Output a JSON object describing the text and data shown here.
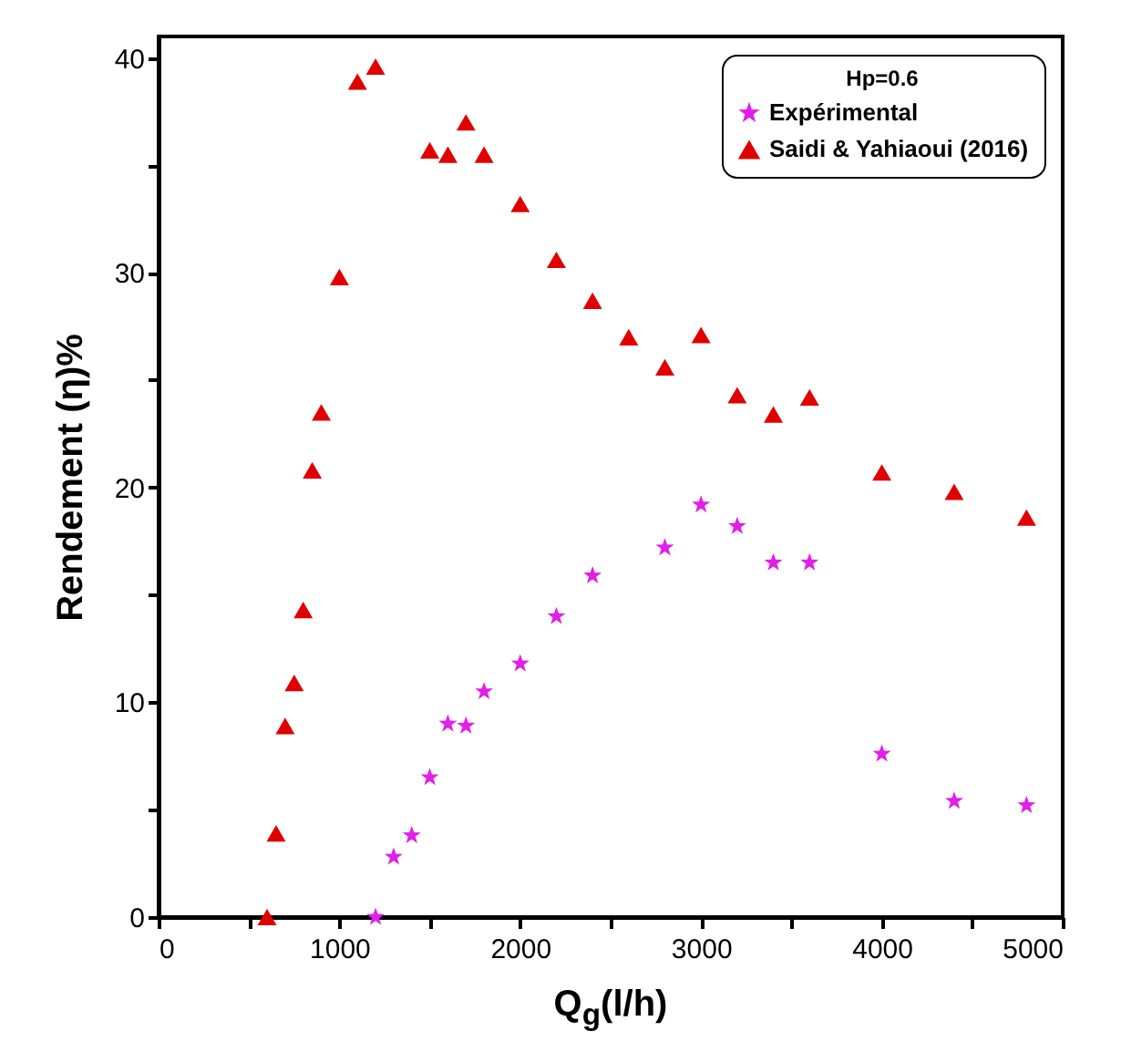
{
  "chart_data": {
    "type": "scatter",
    "xlabel": "Q$_{g}$(l/h)",
    "ylabel": "Rendement (η)%",
    "legend_title": "Hp=0.6",
    "legend": "top right",
    "grid": false,
    "xlim": [
      0,
      5000
    ],
    "xticks": [
      0,
      {
        "value": 500,
        "label": null
      },
      1000,
      {
        "value": 1500,
        "label": null
      },
      2000,
      {
        "value": 2500,
        "label": null
      },
      3000,
      {
        "value": 3500,
        "label": null
      },
      4000,
      {
        "value": 4500,
        "label": null
      },
      5000
    ],
    "ylim": [
      0,
      41
    ],
    "yticks": [
      0,
      {
        "value": 5,
        "label": null
      },
      10,
      {
        "value": 15,
        "label": null
      },
      20,
      {
        "value": 25,
        "label": null
      },
      30,
      {
        "value": 35,
        "label": null
      },
      40
    ],
    "series": [
      {
        "name": "Expérimental",
        "color": "#e020e8",
        "marker": "star",
        "x": [
          1200,
          1300,
          1400,
          1500,
          1600,
          1700,
          1800,
          2000,
          2200,
          2400,
          2800,
          3000,
          3200,
          3400,
          3600,
          4000,
          4400,
          4800
        ],
        "values": [
          0,
          2.8,
          3.8,
          6.5,
          9,
          8.9,
          10.5,
          11.8,
          14,
          15.9,
          17.2,
          19.2,
          18.2,
          16.5,
          16.5,
          7.6,
          5.4,
          5.2
        ]
      },
      {
        "name": "Saidi & Yahiaoui (2016)",
        "color": "#e00000",
        "marker": "triangle",
        "x": [
          600,
          650,
          700,
          750,
          800,
          850,
          900,
          1000,
          1100,
          1200,
          1500,
          1600,
          1700,
          1800,
          2000,
          2200,
          2400,
          2600,
          2800,
          3000,
          3200,
          3400,
          3600,
          4000,
          4400,
          4800
        ],
        "values": [
          0,
          3.9,
          8.9,
          10.9,
          14.3,
          20.8,
          23.5,
          29.8,
          38.9,
          39.6,
          35.7,
          35.5,
          37,
          35.5,
          33.2,
          30.6,
          28.7,
          27,
          25.6,
          27.1,
          24.3,
          23.4,
          24.2,
          20.7,
          19.8,
          18.6
        ]
      }
    ]
  }
}
